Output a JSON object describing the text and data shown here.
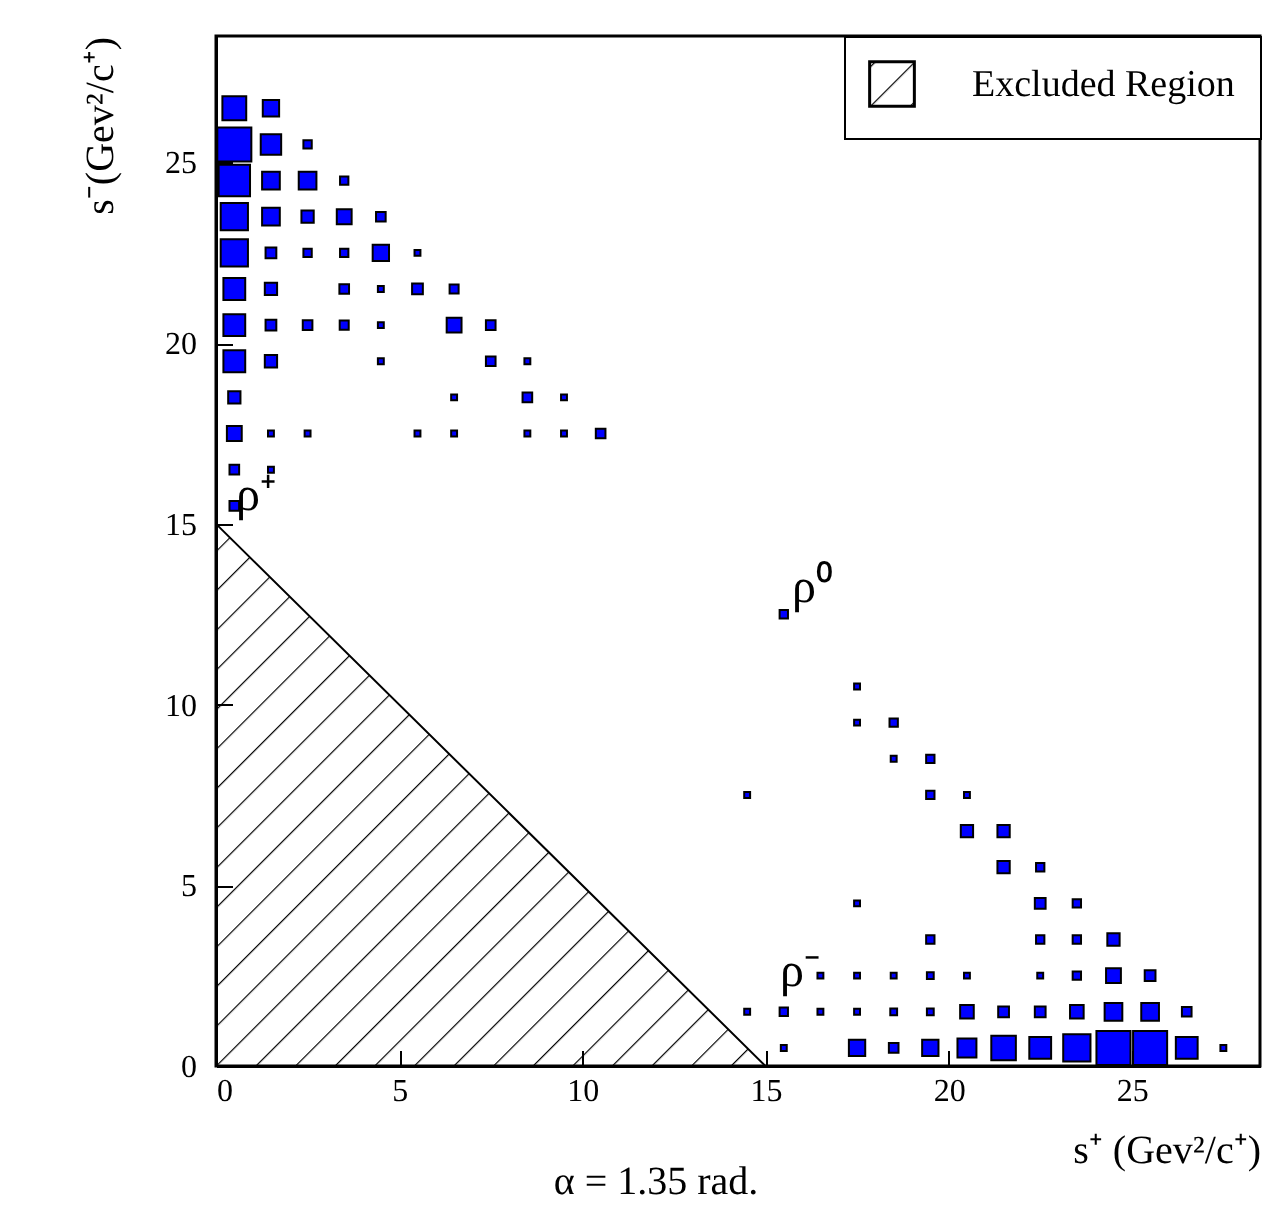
{
  "chart_data": {
    "type": "bubble",
    "xlabel": "s⁺ (Gev²/c⁺)",
    "ylabel": "s⁻(Gev²/c⁺)",
    "xlim": [
      0,
      28.5
    ],
    "ylim": [
      0,
      28.5
    ],
    "xticks": [
      0,
      5,
      10,
      15,
      20,
      25
    ],
    "yticks": [
      0,
      5,
      10,
      15,
      20,
      25
    ],
    "legend": "top right",
    "annotations": [
      "ρ⁺",
      "ρ⁰",
      "ρ⁻",
      "α = 1.35 rad."
    ],
    "series": [
      {
        "type": "area",
        "name": "Excluded Region",
        "color": "#000000",
        "x": [
          0,
          15
        ],
        "values": [
          15,
          0
        ]
      },
      {
        "color": "#0000ff",
        "marker": "square",
        "x": [
          0.5,
          1.5,
          0.5,
          1.5,
          2.5,
          0.5,
          1.5,
          2.5,
          3.5,
          0.5,
          1.5,
          2.5,
          3.5,
          4.5,
          0.5,
          1.5,
          2.5,
          3.5,
          4.5,
          5.5,
          0.5,
          1.5,
          3.5,
          4.5,
          5.5,
          6.5,
          0.5,
          1.5,
          2.5,
          3.5,
          4.5,
          6.5,
          7.5,
          0.5,
          1.5,
          4.5,
          7.5,
          8.5,
          0.5,
          6.5,
          8.5,
          9.5,
          0.5,
          1.5,
          2.5,
          5.5,
          6.5,
          8.5,
          9.5,
          10.5,
          0.5,
          1.5,
          0.5,
          15.5,
          17.5,
          17.5,
          18.5,
          18.5,
          19.5,
          14.5,
          19.5,
          20.5,
          20.5,
          21.5,
          21.5,
          22.5,
          17.5,
          22.5,
          23.5,
          19.5,
          22.5,
          23.5,
          24.5,
          16.5,
          17.5,
          18.5,
          19.5,
          20.5,
          22.5,
          23.5,
          24.5,
          25.5,
          14.5,
          15.5,
          16.5,
          17.5,
          18.5,
          19.5,
          20.5,
          21.5,
          22.5,
          23.5,
          24.5,
          25.5,
          26.5,
          15.5,
          17.5,
          18.5,
          19.5,
          20.5,
          21.5,
          22.5,
          23.5,
          24.5,
          25.5,
          26.5,
          27.5
        ],
        "values": [
          26.5,
          26.5,
          25.5,
          25.5,
          25.5,
          24.5,
          24.5,
          24.5,
          24.5,
          23.5,
          23.5,
          23.5,
          23.5,
          23.5,
          22.5,
          22.5,
          22.5,
          22.5,
          22.5,
          22.5,
          21.5,
          21.5,
          21.5,
          21.5,
          21.5,
          21.5,
          20.5,
          20.5,
          20.5,
          20.5,
          20.5,
          20.5,
          20.5,
          19.5,
          19.5,
          19.5,
          19.5,
          19.5,
          18.5,
          18.5,
          18.5,
          18.5,
          17.5,
          17.5,
          17.5,
          17.5,
          17.5,
          17.5,
          17.5,
          17.5,
          16.5,
          16.5,
          15.5,
          12.5,
          10.5,
          9.5,
          9.5,
          8.5,
          8.5,
          7.5,
          7.5,
          7.5,
          6.5,
          6.5,
          5.5,
          5.5,
          4.5,
          4.5,
          4.5,
          3.5,
          3.5,
          3.5,
          3.5,
          2.5,
          2.5,
          2.5,
          2.5,
          2.5,
          2.5,
          2.5,
          2.5,
          2.5,
          1.5,
          1.5,
          1.5,
          1.5,
          1.5,
          1.5,
          1.5,
          1.5,
          1.5,
          1.5,
          1.5,
          1.5,
          1.5,
          0.5,
          0.5,
          0.5,
          0.5,
          0.5,
          0.5,
          0.5,
          0.5,
          0.5,
          0.5,
          0.5,
          0.5
        ],
        "sizes": [
          0.49,
          0.23,
          1,
          0.36,
          0.06,
          0.85,
          0.27,
          0.27,
          0.06,
          0.64,
          0.27,
          0.13,
          0.19,
          0.08,
          0.64,
          0.1,
          0.06,
          0.06,
          0.23,
          0.03,
          0.41,
          0.13,
          0.08,
          0.03,
          0.1,
          0.07,
          0.41,
          0.1,
          0.08,
          0.07,
          0.03,
          0.19,
          0.08,
          0.41,
          0.13,
          0.03,
          0.08,
          0.03,
          0.13,
          0.03,
          0.08,
          0.03,
          0.19,
          0.03,
          0.03,
          0.03,
          0.03,
          0.03,
          0.03,
          0.08,
          0.08,
          0.03,
          0.08,
          0.06,
          0.03,
          0.03,
          0.06,
          0.03,
          0.06,
          0.03,
          0.06,
          0.03,
          0.13,
          0.13,
          0.13,
          0.06,
          0.03,
          0.1,
          0.06,
          0.06,
          0.06,
          0.06,
          0.13,
          0.03,
          0.03,
          0.03,
          0.04,
          0.03,
          0.03,
          0.06,
          0.19,
          0.1,
          0.03,
          0.06,
          0.03,
          0.03,
          0.04,
          0.04,
          0.16,
          0.1,
          0.1,
          0.16,
          0.27,
          0.27,
          0.08,
          0.03,
          0.23,
          0.08,
          0.23,
          0.31,
          0.52,
          0.41,
          0.64,
          1,
          1,
          0.41,
          0.03
        ]
      }
    ]
  }
}
